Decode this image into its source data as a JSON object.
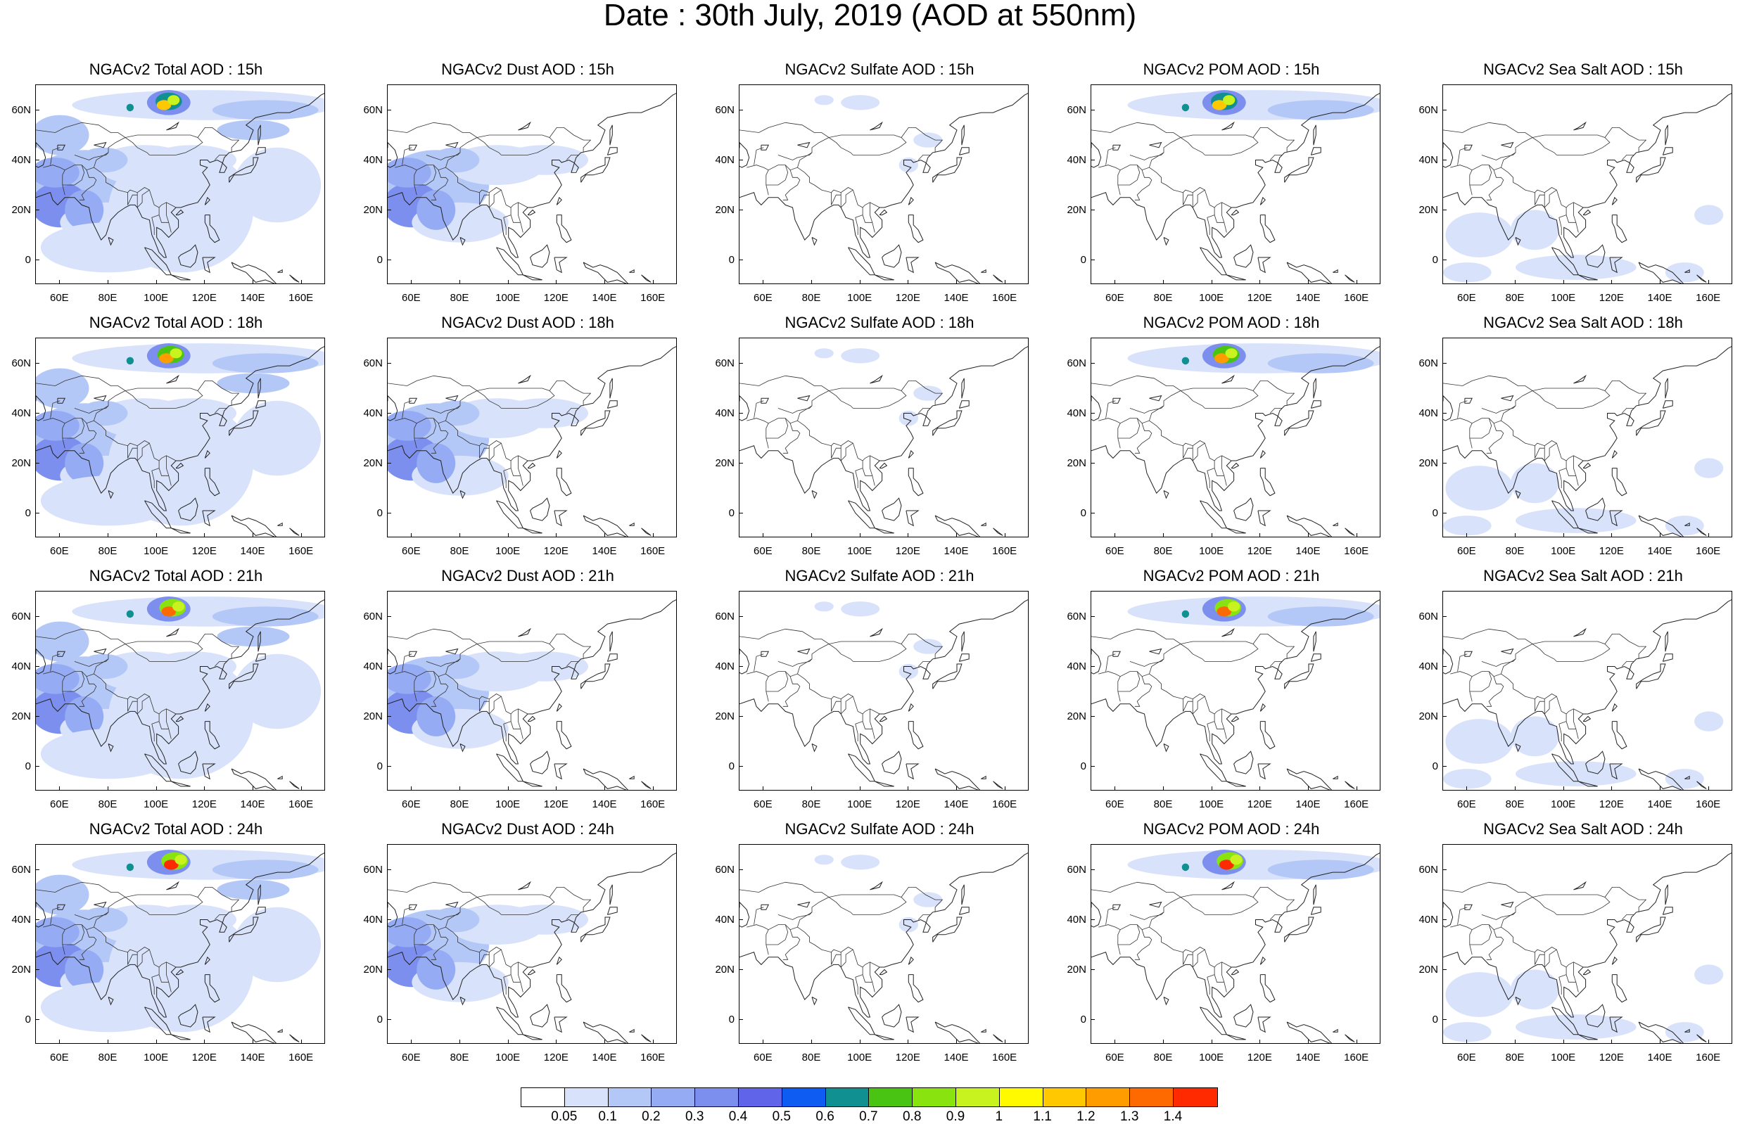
{
  "page_title": "Date : 30th July, 2019 (AOD at 550nm)",
  "lat_labels": [
    "60N",
    "40N",
    "20N",
    "0"
  ],
  "lon_labels": [
    "60E",
    "80E",
    "100E",
    "120E",
    "140E",
    "160E"
  ],
  "map_extent": {
    "lon_min": 50,
    "lon_max": 170,
    "lat_min": -10,
    "lat_max": 70
  },
  "colorbar": {
    "labels": [
      "0.05",
      "0.1",
      "0.2",
      "0.3",
      "0.4",
      "0.5",
      "0.6",
      "0.7",
      "0.8",
      "0.9",
      "1",
      "1.1",
      "1.2",
      "1.3",
      "1.4"
    ],
    "colors": [
      "#ffffff",
      "#d8e2fb",
      "#b4c8f8",
      "#95acf4",
      "#7c8fef",
      "#6064e8",
      "#0f5cf2",
      "#109090",
      "#4ac413",
      "#89e30f",
      "#c8f31e",
      "#fffa00",
      "#ffc800",
      "#ff9d00",
      "#ff6a00",
      "#ff2a00"
    ]
  },
  "panels": [
    {
      "title": "NGACv2 Total AOD : 15h",
      "species": "total"
    },
    {
      "title": "NGACv2 Dust AOD : 15h",
      "species": "dust"
    },
    {
      "title": "NGACv2 Sulfate AOD : 15h",
      "species": "sulfate"
    },
    {
      "title": "NGACv2 POM AOD : 15h",
      "species": "pom"
    },
    {
      "title": "NGACv2 Sea Salt AOD : 15h",
      "species": "seasalt"
    },
    {
      "title": "NGACv2 Total AOD : 18h",
      "species": "total"
    },
    {
      "title": "NGACv2 Dust AOD : 18h",
      "species": "dust"
    },
    {
      "title": "NGACv2 Sulfate AOD : 18h",
      "species": "sulfate"
    },
    {
      "title": "NGACv2 POM AOD : 18h",
      "species": "pom"
    },
    {
      "title": "NGACv2 Sea Salt AOD : 18h",
      "species": "seasalt"
    },
    {
      "title": "NGACv2 Total AOD : 21h",
      "species": "total"
    },
    {
      "title": "NGACv2 Dust AOD : 21h",
      "species": "dust"
    },
    {
      "title": "NGACv2 Sulfate AOD : 21h",
      "species": "sulfate"
    },
    {
      "title": "NGACv2 POM AOD : 21h",
      "species": "pom"
    },
    {
      "title": "NGACv2 Sea Salt AOD : 21h",
      "species": "seasalt"
    },
    {
      "title": "NGACv2 Total AOD : 24h",
      "species": "total"
    },
    {
      "title": "NGACv2 Dust AOD : 24h",
      "species": "dust"
    },
    {
      "title": "NGACv2 Sulfate AOD : 24h",
      "species": "sulfate"
    },
    {
      "title": "NGACv2 POM AOD : 24h",
      "species": "pom"
    },
    {
      "title": "NGACv2 Sea Salt  AOD : 24h",
      "species": "seasalt"
    }
  ]
}
